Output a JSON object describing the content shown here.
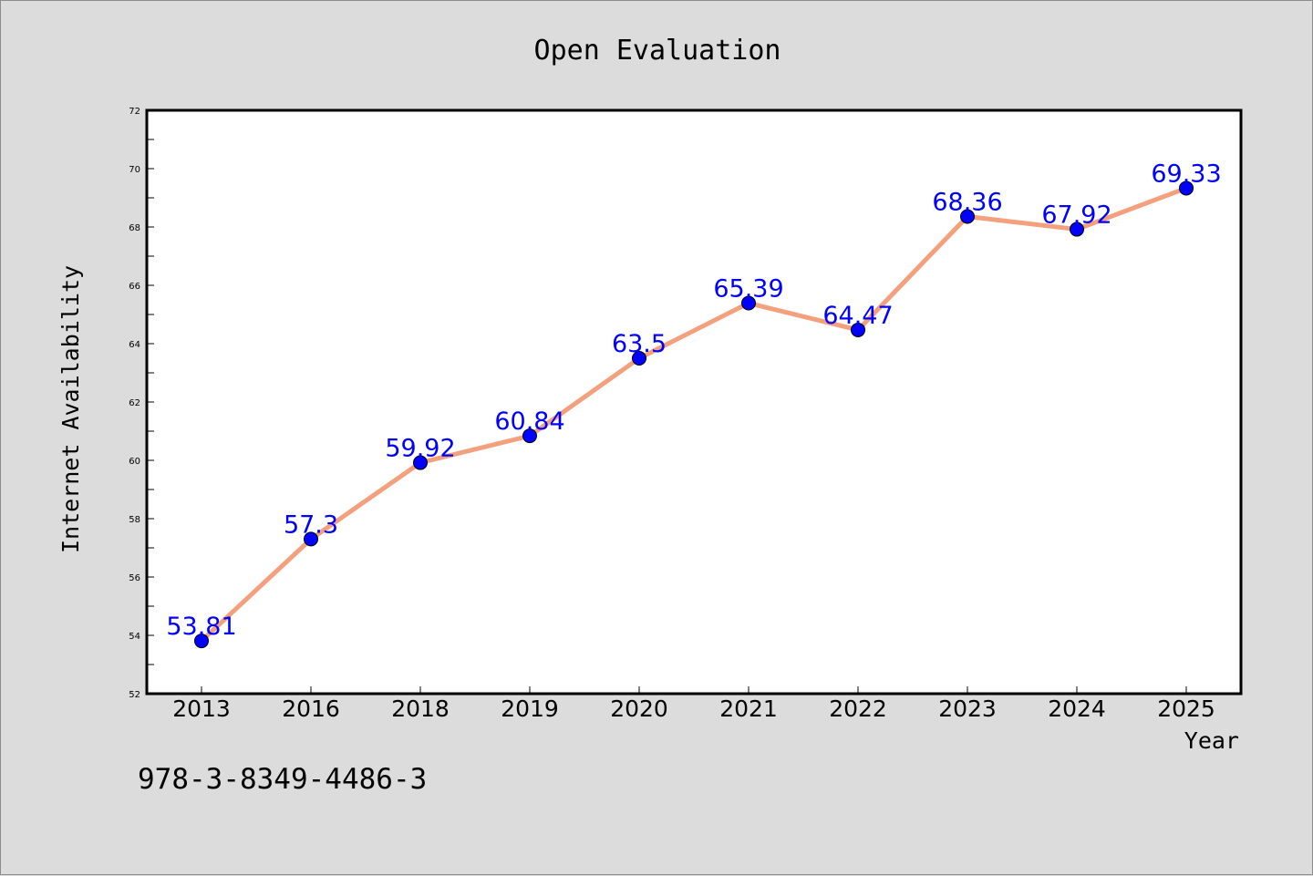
{
  "chart_data": {
    "type": "line",
    "title": "Open Evaluation",
    "xlabel": "Year",
    "ylabel": "Internet Availability",
    "categories": [
      "2013",
      "2016",
      "2018",
      "2019",
      "2020",
      "2021",
      "2022",
      "2023",
      "2024",
      "2025"
    ],
    "series": [
      {
        "values": [
          53.81,
          57.3,
          59.92,
          60.84,
          63.5,
          65.39,
          64.47,
          68.36,
          67.92,
          69.33
        ],
        "data_labels": [
          "53.81",
          "57.3",
          "59.92",
          "60.84",
          "63.5",
          "65.39",
          "64.47",
          "68.36",
          "67.92",
          "69.33"
        ]
      }
    ],
    "ylim": [
      52,
      72
    ],
    "yticks": [
      "52",
      "54",
      "56",
      "58",
      "60",
      "62",
      "64",
      "66",
      "68",
      "70",
      "72"
    ],
    "grid": false,
    "colors": {
      "line": "#f4a07c",
      "marker": "#0000ff",
      "label": "#0000ff",
      "background": "#dcdcdc",
      "plot_background": "#ffffff"
    }
  },
  "footnote": "978-3-8349-4486-3"
}
